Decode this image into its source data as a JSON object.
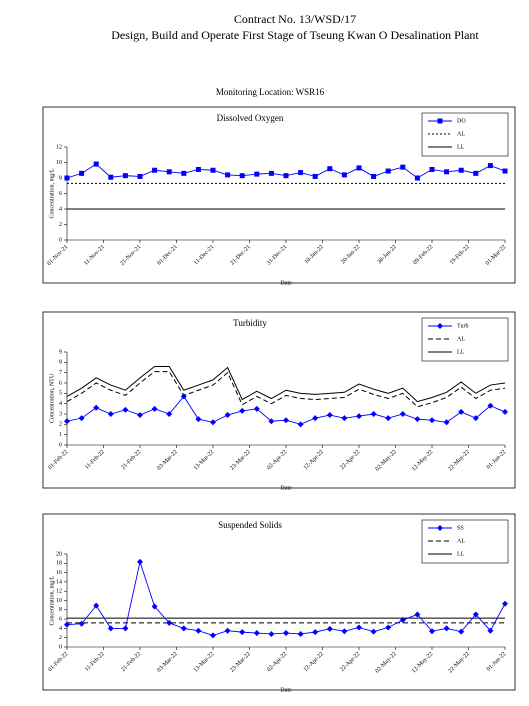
{
  "header": {
    "contract": "Contract No. 13/WSD/17",
    "project": "Design, Build and Operate First Stage of Tseung Kwan O Desalination Plant",
    "location": "Monitoring Location: WSR16"
  },
  "chart_data": [
    {
      "type": "line",
      "title": "Dissolved Oxygen",
      "xlabel": "Date",
      "ylabel": "Concentration, mg/L",
      "x": [
        "01-Nov-21",
        "05-Nov-21",
        "09-Nov-21",
        "13-Nov-21",
        "17-Nov-21",
        "21-Nov-21",
        "25-Nov-21",
        "29-Nov-21",
        "03-Dec-21",
        "07-Dec-21",
        "11-Dec-21",
        "15-Dec-21",
        "19-Dec-21",
        "23-Dec-21",
        "27-Dec-21",
        "31-Dec-21",
        "04-Jan-22",
        "08-Jan-22",
        "12-Jan-22",
        "16-Jan-22",
        "20-Jan-22",
        "24-Jan-22",
        "28-Jan-22",
        "01-Feb-22",
        "05-Feb-22",
        "09-Feb-22",
        "13-Feb-22",
        "17-Feb-22",
        "21-Feb-22",
        "25-Feb-22",
        "01-Mar-22"
      ],
      "series": [
        {
          "name": "DO",
          "color": "#0000ff",
          "marker": "square",
          "dash": "solid",
          "values": [
            8.0,
            8.6,
            9.8,
            8.1,
            8.3,
            8.2,
            9.0,
            8.8,
            8.6,
            9.1,
            9.0,
            8.4,
            8.3,
            8.5,
            8.6,
            8.3,
            8.7,
            8.2,
            9.2,
            8.4,
            9.3,
            8.2,
            8.9,
            9.4,
            8.0,
            9.1,
            8.8,
            9.0,
            8.6,
            9.6,
            8.9
          ]
        }
      ],
      "reference_lines": [
        {
          "name": "AL",
          "value": 7.3,
          "dash": "dotted",
          "color": "#000000"
        },
        {
          "name": "LL",
          "value": 4.0,
          "dash": "solid",
          "color": "#000000"
        }
      ],
      "xlim": [
        "01-Nov-21",
        "01-Mar-22"
      ],
      "xticks": [
        "01-Nov-21",
        "11-Nov-21",
        "21-Nov-21",
        "01-Dec-21",
        "11-Dec-21",
        "21-Dec-21",
        "31-Dec-21",
        "10-Jan-22",
        "20-Jan-22",
        "30-Jan-22",
        "09-Feb-22",
        "19-Feb-22",
        "01-Mar-22"
      ],
      "ylim": [
        0,
        12
      ],
      "yticks": [
        0,
        2,
        4,
        6,
        8,
        10,
        12
      ]
    },
    {
      "type": "line",
      "title": "Turbidity",
      "xlabel": "Date",
      "ylabel": "Concentration, NTU",
      "x": [
        "01-Feb-22",
        "05-Feb-22",
        "09-Feb-22",
        "13-Feb-22",
        "17-Feb-22",
        "21-Feb-22",
        "25-Feb-22",
        "01-Mar-22",
        "05-Mar-22",
        "09-Mar-22",
        "13-Mar-22",
        "17-Mar-22",
        "21-Mar-22",
        "25-Mar-22",
        "29-Mar-22",
        "02-Apr-22",
        "06-Apr-22",
        "10-Apr-22",
        "14-Apr-22",
        "18-Apr-22",
        "22-Apr-22",
        "26-Apr-22",
        "30-Apr-22",
        "04-May-22",
        "08-May-22",
        "12-May-22",
        "16-May-22",
        "20-May-22",
        "24-May-22",
        "28-May-22",
        "01-Jun-22"
      ],
      "series": [
        {
          "name": "Turb",
          "color": "#0000ff",
          "marker": "diamond",
          "dash": "solid",
          "values": [
            2.3,
            2.6,
            3.6,
            3.0,
            3.4,
            2.9,
            3.5,
            3.0,
            4.7,
            2.5,
            2.2,
            2.9,
            3.3,
            3.5,
            2.3,
            2.4,
            2.0,
            2.6,
            2.9,
            2.6,
            2.8,
            3.0,
            2.6,
            3.0,
            2.5,
            2.4,
            2.2,
            3.2,
            2.6,
            3.8,
            3.2
          ]
        },
        {
          "name": "AL",
          "color": "#000000",
          "marker": "none",
          "dash": "dashed",
          "values": [
            4.2,
            5.0,
            6.0,
            5.3,
            4.8,
            6.0,
            7.1,
            7.1,
            4.8,
            5.3,
            5.8,
            7.0,
            3.9,
            4.7,
            4.0,
            4.8,
            4.5,
            4.4,
            4.5,
            4.6,
            5.4,
            4.9,
            4.5,
            5.0,
            3.7,
            4.1,
            4.6,
            5.6,
            4.5,
            5.3,
            5.5
          ]
        },
        {
          "name": "LL",
          "color": "#000000",
          "marker": "none",
          "dash": "solid",
          "values": [
            4.7,
            5.5,
            6.5,
            5.8,
            5.3,
            6.5,
            7.6,
            7.6,
            5.3,
            5.8,
            6.3,
            7.5,
            4.4,
            5.2,
            4.5,
            5.3,
            5.0,
            4.9,
            5.0,
            5.1,
            5.9,
            5.4,
            5.0,
            5.5,
            4.2,
            4.6,
            5.1,
            6.1,
            5.0,
            5.8,
            6.0
          ]
        }
      ],
      "xlim": [
        "01-Feb-22",
        "01-Jun-22"
      ],
      "xticks": [
        "01-Feb-22",
        "11-Feb-22",
        "21-Feb-22",
        "03-Mar-22",
        "13-Mar-22",
        "23-Mar-22",
        "02-Apr-22",
        "12-Apr-22",
        "22-Apr-22",
        "02-May-22",
        "12-May-22",
        "22-May-22",
        "01-Jun-22"
      ],
      "ylim": [
        0,
        9
      ],
      "yticks": [
        0,
        1,
        2,
        3,
        4,
        5,
        6,
        7,
        8,
        9
      ]
    },
    {
      "type": "line",
      "title": "Suspended Solids",
      "xlabel": "Date",
      "ylabel": "Concentration, mg/L",
      "x": [
        "01-Feb-22",
        "05-Feb-22",
        "09-Feb-22",
        "13-Feb-22",
        "17-Feb-22",
        "21-Feb-22",
        "25-Feb-22",
        "01-Mar-22",
        "05-Mar-22",
        "09-Mar-22",
        "13-Mar-22",
        "17-Mar-22",
        "21-Mar-22",
        "25-Mar-22",
        "29-Mar-22",
        "02-Apr-22",
        "06-Apr-22",
        "10-Apr-22",
        "14-Apr-22",
        "18-Apr-22",
        "22-Apr-22",
        "26-Apr-22",
        "30-Apr-22",
        "04-May-22",
        "08-May-22",
        "12-May-22",
        "16-May-22",
        "20-May-22",
        "24-May-22",
        "28-May-22",
        "01-Jun-22"
      ],
      "series": [
        {
          "name": "SS",
          "color": "#0000ff",
          "marker": "diamond",
          "dash": "solid",
          "values": [
            4.8,
            5.0,
            8.9,
            4.0,
            4.0,
            18.3,
            8.7,
            5.2,
            4.0,
            3.5,
            2.5,
            3.5,
            3.2,
            3.0,
            2.8,
            3.0,
            2.8,
            3.2,
            3.9,
            3.4,
            4.2,
            3.3,
            4.2,
            5.8,
            7.0,
            3.4,
            4.0,
            3.3,
            7.0,
            3.5,
            9.3
          ]
        }
      ],
      "reference_lines": [
        {
          "name": "AL",
          "value": 5.2,
          "dash": "dashed",
          "color": "#000000"
        },
        {
          "name": "LL",
          "value": 6.2,
          "dash": "solid",
          "color": "#000000"
        }
      ],
      "xlim": [
        "01-Feb-22",
        "01-Jun-22"
      ],
      "xticks": [
        "01-Feb-22",
        "11-Feb-22",
        "21-Feb-22",
        "03-Mar-22",
        "13-Mar-22",
        "23-Mar-22",
        "02-Apr-22",
        "12-Apr-22",
        "22-Apr-22",
        "02-May-22",
        "12-May-22",
        "22-May-22",
        "01-Jun-22"
      ],
      "ylim": [
        0,
        20
      ],
      "yticks": [
        0,
        2,
        4,
        6,
        8,
        10,
        12,
        14,
        16,
        18,
        20
      ]
    }
  ]
}
